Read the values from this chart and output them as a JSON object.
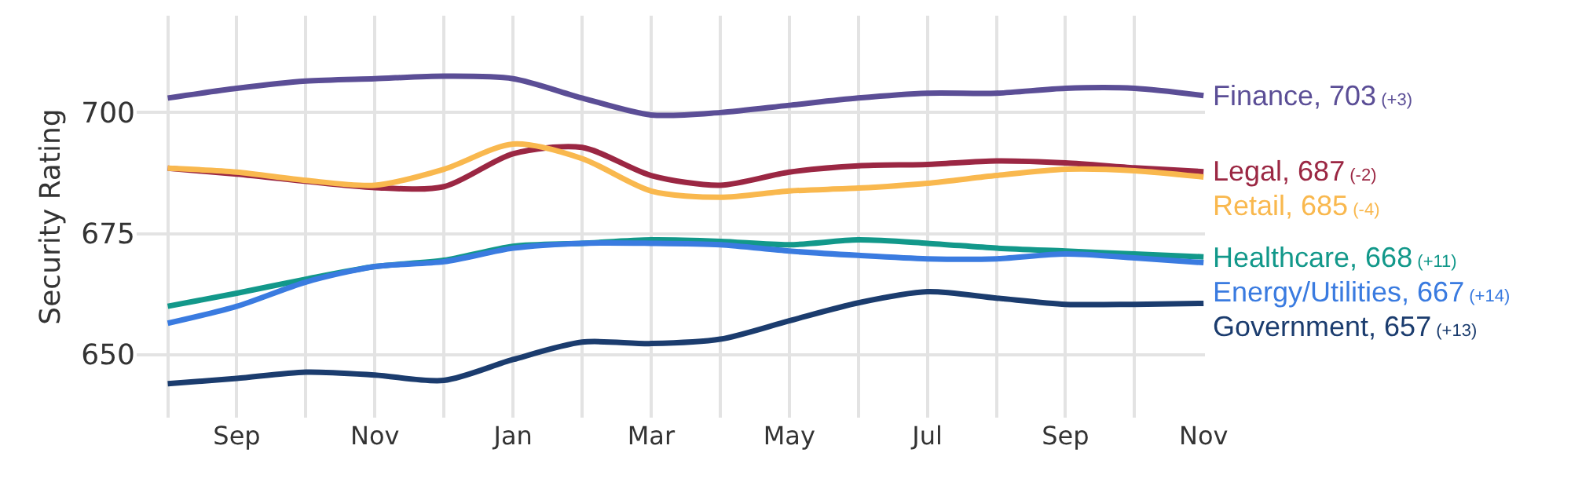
{
  "chart_data": {
    "type": "line",
    "ylabel": "Security Rating",
    "grid": true,
    "marker": "none",
    "line_style": "solid",
    "ylim": [
      637,
      720
    ],
    "yticks": [
      650,
      675,
      700
    ],
    "categories": [
      null,
      "Sep",
      null,
      "Nov",
      null,
      "Jan",
      null,
      "Mar",
      null,
      "May",
      null,
      "Jul",
      null,
      "Sep",
      null,
      "Nov"
    ],
    "series": [
      {
        "color": "#5b4e96",
        "values": [
          703,
          705,
          706.5,
          707,
          707.5,
          707,
          703,
          699.5,
          700,
          701.5,
          703,
          704,
          704,
          705,
          705,
          703.5
        ]
      },
      {
        "color": "#9b2743",
        "values": [
          688.5,
          687.3,
          null,
          684.5,
          684.7,
          691.5,
          692.8,
          687,
          685,
          687.7,
          689,
          689.3,
          690,
          689.6,
          688.6,
          687.8
        ]
      },
      {
        "color": "#f9b84e",
        "values": [
          688.5,
          687.7,
          686,
          685,
          688.3,
          693.5,
          690.5,
          683.8,
          682.5,
          683.8,
          684.4,
          685.4,
          687,
          688.3,
          688,
          686.7
        ]
      },
      {
        "color": "#12988a",
        "values": [
          660,
          662.7,
          665.6,
          668.2,
          669.5,
          672.4,
          673,
          673.7,
          673.4,
          672.7,
          673.7,
          673,
          672,
          671.4,
          670.8,
          670.2
        ]
      },
      {
        "color": "#3a7be0",
        "values": [
          656.5,
          660,
          665,
          668.2,
          669.2,
          672,
          673,
          673,
          672.7,
          671.4,
          670.5,
          669.8,
          669.8,
          670.8,
          670,
          669
        ]
      },
      {
        "color": "#1b3c6e",
        "values": [
          644,
          645.1,
          646.4,
          645.8,
          644.7,
          649,
          652.6,
          652.3,
          653.2,
          657,
          660.7,
          663,
          661.7,
          660.4,
          660.4,
          660.6
        ]
      }
    ],
    "annotations": [
      "Finance, 703 (+3)",
      "Legal, 687 (-2)",
      "Retail, 685 (-4)",
      "Healthcare, 668 (+11)",
      "Energy/Utilities, 667 (+14)",
      "Government, 657 (+13)"
    ]
  }
}
